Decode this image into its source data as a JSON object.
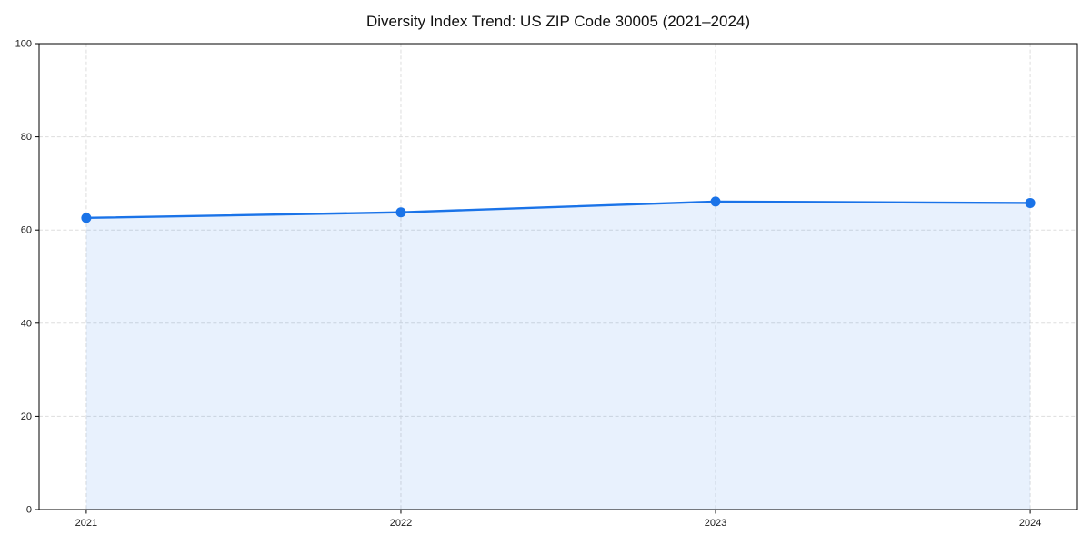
{
  "chart": {
    "title": "Diversity Index Trend: US ZIP Code 30005 (2021–2024)"
  },
  "chart_data": {
    "type": "line",
    "title": "Diversity Index Trend: US ZIP Code 30005 (2021–2024)",
    "x": [
      2021,
      2022,
      2023,
      2024
    ],
    "series": [
      {
        "name": "Diversity Index",
        "values": [
          62.6,
          63.8,
          66.1,
          65.8
        ]
      }
    ],
    "xlabel": "",
    "ylabel": "",
    "xticks": [
      "2021",
      "2022",
      "2023",
      "2024"
    ],
    "yticks": [
      0,
      20,
      40,
      60,
      80,
      100
    ],
    "ylim": [
      0,
      100
    ],
    "x_margin_fraction": 0.05,
    "grid": "both",
    "grid_style": "dashed",
    "legend": "none",
    "colors": {
      "line": "#1a73e8",
      "marker": "#1a73e8",
      "area_fill": "#1a73e8",
      "gridline": "#dddddd",
      "axis": "#000000",
      "title_text": "#111111",
      "tick_text": "#1a1a1a",
      "background": "#ffffff"
    },
    "area_fill_opacity": 0.1,
    "line_width": 2.4,
    "marker_size": 5.5
  }
}
